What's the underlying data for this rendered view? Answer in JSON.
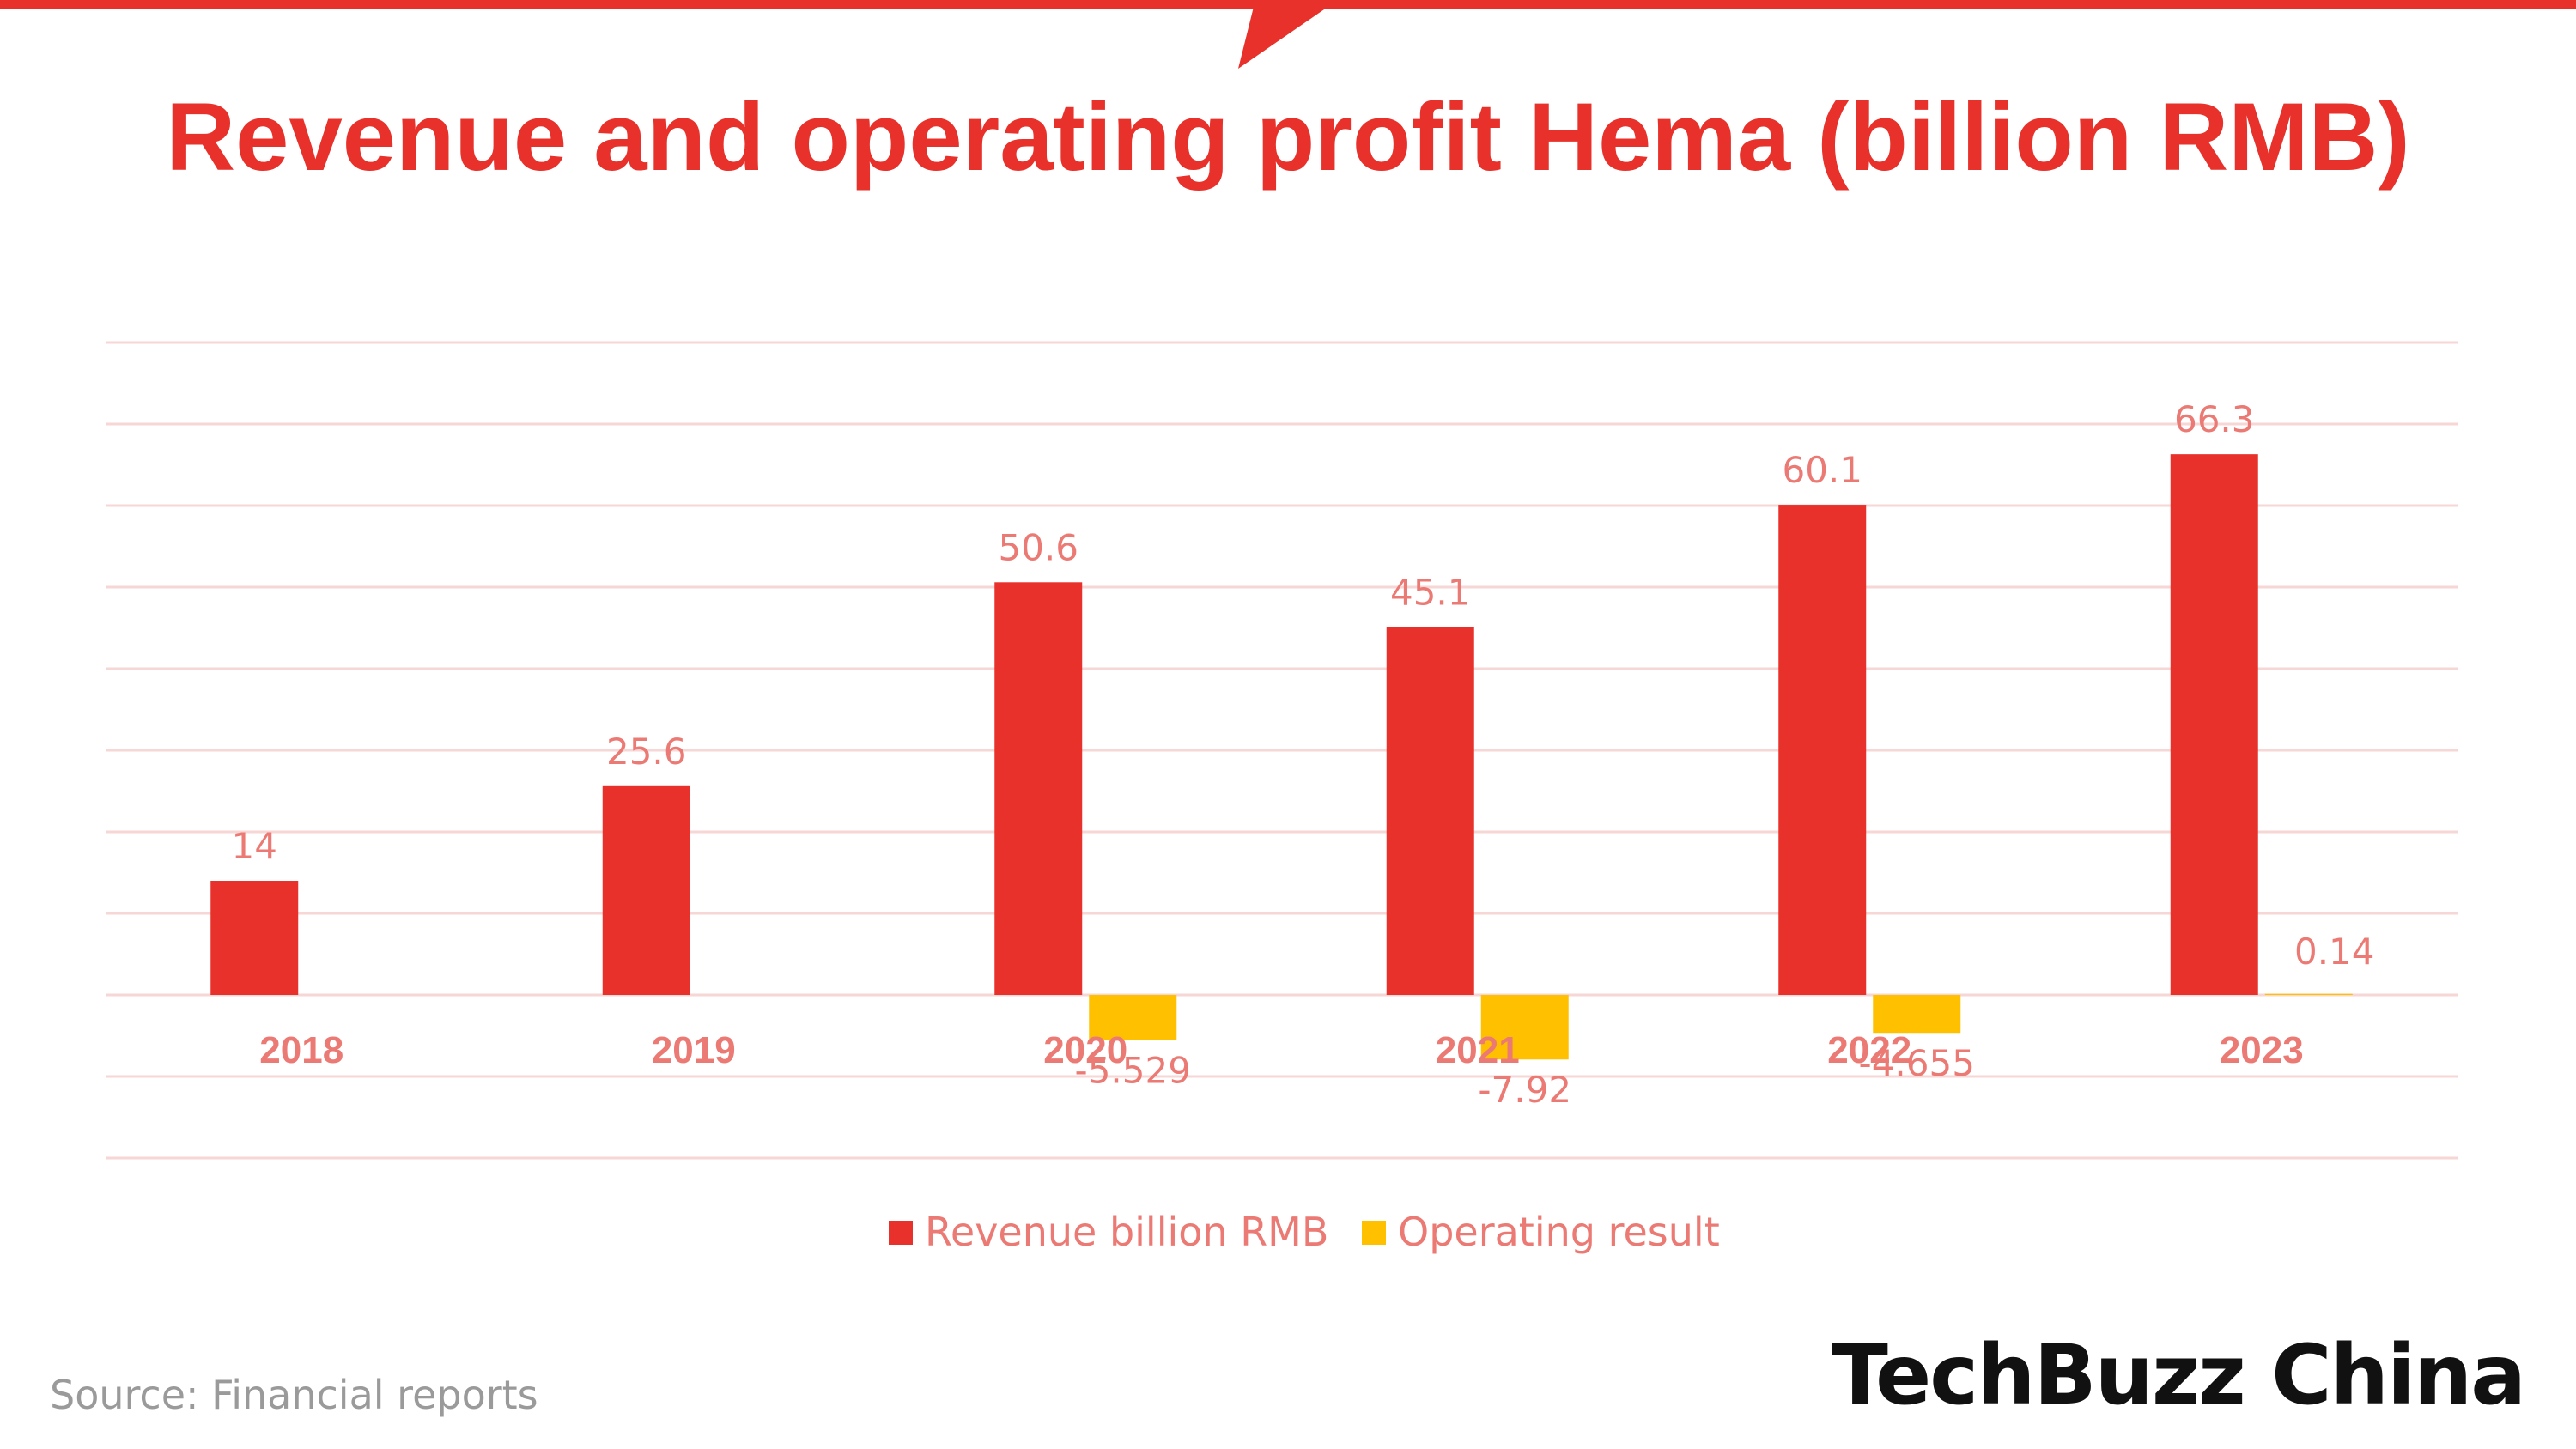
{
  "colors": {
    "accent": "#e8312a",
    "revenue": "#e8312a",
    "operating": "#ffc000",
    "label": "#ec7a74",
    "grid": "#f7d6d6",
    "source": "#9a9a9a",
    "brand": "#111111"
  },
  "source_text": "Source:  Financial reports",
  "brand_text": "TechBuzz China",
  "chart_data": {
    "type": "bar",
    "title": "Revenue and operating profit Hema (billion RMB)",
    "xlabel": "",
    "ylabel": "",
    "categories": [
      "2018",
      "2019",
      "2020",
      "2021",
      "2022",
      "2023"
    ],
    "series": [
      {
        "name": "Revenue billion RMB",
        "values": [
          14,
          25.6,
          50.6,
          45.1,
          60.1,
          66.3
        ],
        "labels": [
          "14",
          "25.6",
          "50.6",
          "45.1",
          "60.1",
          "66.3"
        ]
      },
      {
        "name": "Operating result",
        "values": [
          null,
          null,
          -5.529,
          -7.92,
          -4.655,
          0.14
        ],
        "labels": [
          "",
          "",
          "-5.529",
          "-7.92",
          "-4.655",
          "0.14"
        ]
      }
    ],
    "ylim": [
      -20,
      80
    ],
    "grid": true,
    "legend": "bottom"
  }
}
